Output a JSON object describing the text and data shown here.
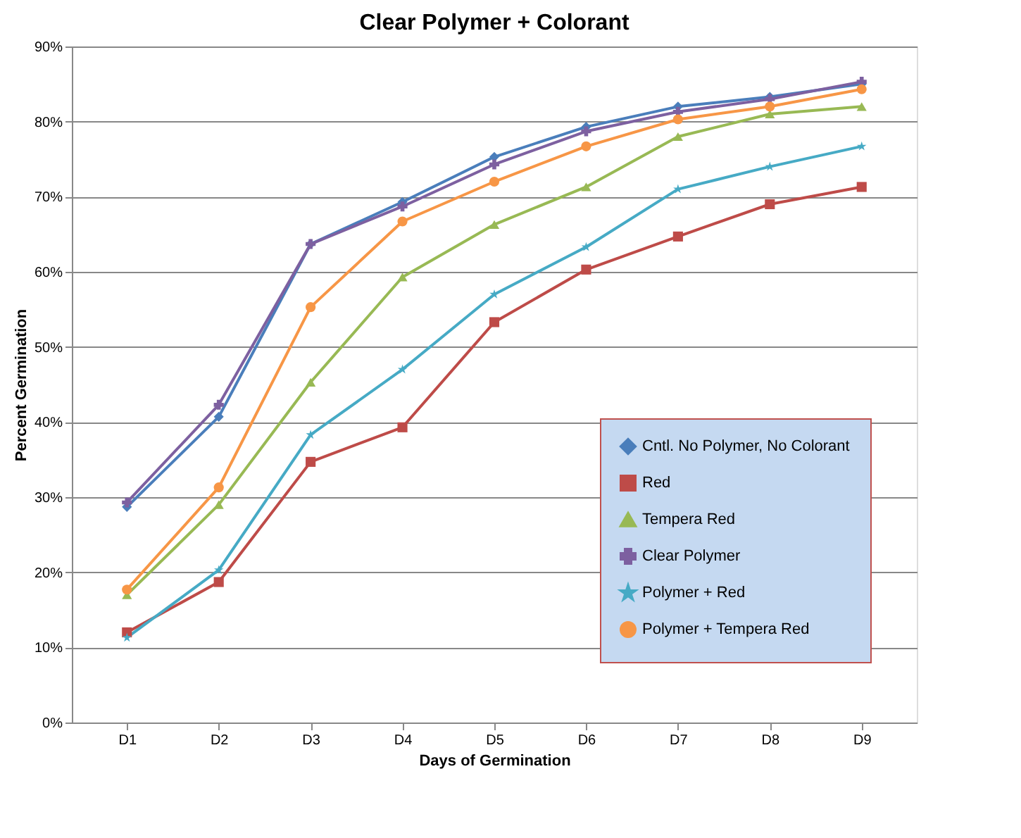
{
  "chart_data": {
    "type": "line",
    "title": "Clear Polymer + Colorant",
    "xlabel": "Days of Germination",
    "ylabel": "Percent Germination",
    "categories": [
      "D1",
      "D2",
      "D3",
      "D4",
      "D5",
      "D6",
      "D7",
      "D8",
      "D9"
    ],
    "series": [
      {
        "name": "Cntl. No Polymer, No Colorant",
        "color": "#4a7ebb",
        "marker": "diamond",
        "values": [
          28.7,
          40.7,
          63.7,
          69.3,
          75.3,
          79.3,
          82,
          83.3,
          85
        ]
      },
      {
        "name": "Red",
        "color": "#be4b48",
        "marker": "square",
        "values": [
          12,
          18.7,
          34.7,
          39.3,
          53.3,
          60.3,
          64.7,
          69,
          71.3
        ]
      },
      {
        "name": "Tempera Red",
        "color": "#98b954",
        "marker": "triangle",
        "values": [
          17,
          29,
          45.3,
          59.3,
          66.3,
          71.3,
          78,
          81,
          82
        ]
      },
      {
        "name": "Clear Polymer",
        "color": "#7d60a0",
        "marker": "cross",
        "values": [
          29.3,
          42.3,
          63.7,
          68.7,
          74.3,
          78.7,
          81.3,
          83,
          85.3
        ]
      },
      {
        "name": "Polymer + Red",
        "color": "#46aac5",
        "marker": "star",
        "values": [
          11.3,
          20.3,
          38.3,
          47,
          57,
          63.3,
          71,
          74,
          76.7
        ]
      },
      {
        "name": "Polymer + Tempera Red",
        "color": "#f79646",
        "marker": "circle",
        "values": [
          17.7,
          31.3,
          55.3,
          66.7,
          72,
          76.7,
          80.3,
          82,
          84.3
        ]
      }
    ],
    "ylim": [
      0,
      90
    ],
    "yticks": [
      {
        "value": 0,
        "label": "0%"
      },
      {
        "value": 10,
        "label": "10%"
      },
      {
        "value": 20,
        "label": "20%"
      },
      {
        "value": 30,
        "label": "30%"
      },
      {
        "value": 40,
        "label": "40%"
      },
      {
        "value": 50,
        "label": "50%"
      },
      {
        "value": 60,
        "label": "60%"
      },
      {
        "value": 70,
        "label": "70%"
      },
      {
        "value": 80,
        "label": "80%"
      },
      {
        "value": 90,
        "label": "90%"
      }
    ],
    "grid": "y",
    "legend": "right",
    "line_style": "solid"
  }
}
